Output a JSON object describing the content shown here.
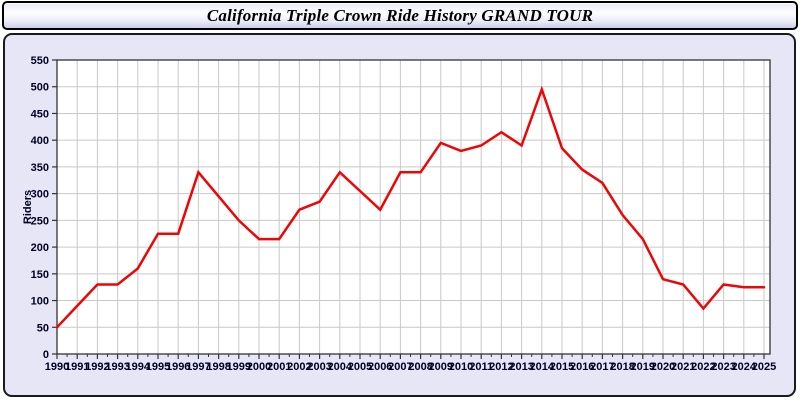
{
  "title": "California Triple Crown Ride History GRAND TOUR",
  "chart_data": {
    "type": "line",
    "title": "California Triple Crown Ride History GRAND TOUR",
    "xlabel": "",
    "ylabel": "Riders",
    "ylim": [
      0,
      550
    ],
    "ytick_step": 50,
    "grid": true,
    "legend": "none",
    "x": [
      1990,
      1991,
      1992,
      1993,
      1994,
      1995,
      1996,
      1997,
      1998,
      1999,
      2000,
      2001,
      2002,
      2003,
      2004,
      2005,
      2006,
      2007,
      2008,
      2009,
      2010,
      2011,
      2012,
      2013,
      2014,
      2015,
      2016,
      2017,
      2018,
      2019,
      2020,
      2021,
      2022,
      2023,
      2024,
      2025
    ],
    "series": [
      {
        "name": "Riders",
        "values": [
          50,
          90,
          130,
          130,
          160,
          225,
          225,
          340,
          295,
          250,
          215,
          215,
          270,
          285,
          340,
          305,
          270,
          340,
          340,
          395,
          380,
          390,
          415,
          390,
          495,
          385,
          345,
          320,
          260,
          215,
          140,
          130,
          85,
          130,
          125,
          125
        ]
      }
    ],
    "colors": {
      "line": "#ee0505",
      "panel_bg": "#e6e6f7",
      "plot_bg": "#ffffff",
      "grid": "#c9c9c9",
      "axis": "#333333",
      "tick_label": "#000022"
    }
  }
}
